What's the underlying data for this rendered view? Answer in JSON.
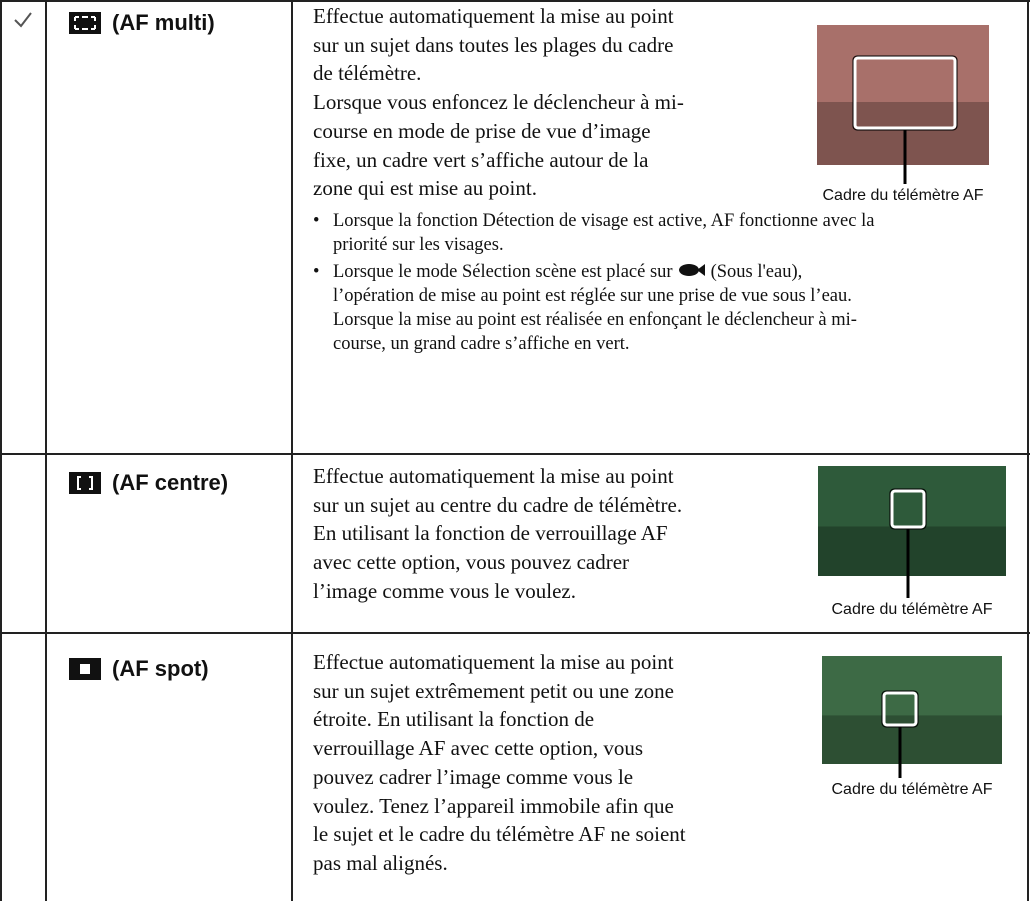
{
  "rows": [
    {
      "label": "(AF multi)",
      "lines": [
        "Effectue automatiquement la mise au point",
        "sur un sujet dans toutes les plages du cadre",
        "de télémètre.",
        "Lorsque vous enfoncez le déclencheur à mi-",
        "course en mode de prise de vue d’image",
        "fixe, un cadre vert s’affiche autour de la",
        "zone qui est mise au point."
      ],
      "bullets": [
        [
          "Lorsque la fonction Détection de visage est active, AF fonctionne avec la",
          "priorité sur les visages."
        ],
        [
          [
            "Lorsque le mode Sélection scène est placé sur",
            "(Sous l'eau),"
          ],
          "l’opération de mise au point est réglée sur une prise de vue sous l’eau.",
          "Lorsque la mise au point est réalisée en enfonçant le déclencheur à mi-",
          "course, un grand cadre s’affiche en vert."
        ]
      ],
      "caption": "Cadre du télémètre AF"
    },
    {
      "label": "(AF centre)",
      "lines": [
        "Effectue automatiquement la mise au point",
        "sur un sujet au centre du cadre de télémètre.",
        "En utilisant la fonction de verrouillage AF",
        "avec cette option, vous pouvez cadrer",
        "l’image comme vous le voulez."
      ],
      "caption": "Cadre du télémètre AF"
    },
    {
      "label": "(AF spot)",
      "lines": [
        "Effectue automatiquement la mise au point",
        "sur un sujet extrêmement petit ou une zone",
        "étroite. En utilisant la fonction de",
        "verrouillage AF avec cette option, vous",
        "pouvez cadrer l’image comme vous le",
        "voulez. Tenez l’appareil immobile afin que",
        "le sujet et le cadre du télémètre AF ne soient",
        "pas mal alignés."
      ],
      "caption": "Cadre du télémètre AF"
    }
  ]
}
